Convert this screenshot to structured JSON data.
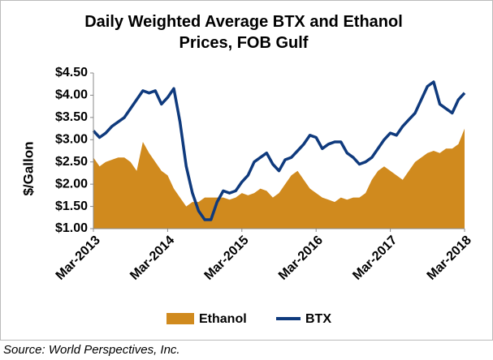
{
  "chart_data": {
    "type": "area-line",
    "title": "Daily Weighted Average BTX and Ethanol Prices, FOB Gulf",
    "y_label": "$/Gallon",
    "source": "Source: World Perspectives, Inc.",
    "x": [
      "2013-03",
      "2013-04",
      "2013-05",
      "2013-06",
      "2013-07",
      "2013-08",
      "2013-09",
      "2013-10",
      "2013-11",
      "2013-12",
      "2014-01",
      "2014-02",
      "2014-03",
      "2014-04",
      "2014-05",
      "2014-06",
      "2014-07",
      "2014-08",
      "2014-09",
      "2014-10",
      "2014-11",
      "2014-12",
      "2015-01",
      "2015-02",
      "2015-03",
      "2015-04",
      "2015-05",
      "2015-06",
      "2015-07",
      "2015-08",
      "2015-09",
      "2015-10",
      "2015-11",
      "2015-12",
      "2016-01",
      "2016-02",
      "2016-03",
      "2016-04",
      "2016-05",
      "2016-06",
      "2016-07",
      "2016-08",
      "2016-09",
      "2016-10",
      "2016-11",
      "2016-12",
      "2017-01",
      "2017-02",
      "2017-03",
      "2017-04",
      "2017-05",
      "2017-06",
      "2017-07",
      "2017-08",
      "2017-09",
      "2017-10",
      "2017-11",
      "2017-12",
      "2018-01",
      "2018-02",
      "2018-03"
    ],
    "xticks": [
      {
        "value": "2013-03",
        "label": "Mar-2013"
      },
      {
        "value": "2014-03",
        "label": "Mar-2014"
      },
      {
        "value": "2015-03",
        "label": "Mar-2015"
      },
      {
        "value": "2016-03",
        "label": "Mar-2016"
      },
      {
        "value": "2017-03",
        "label": "Mar-2017"
      },
      {
        "value": "2018-03",
        "label": "Mar-2018"
      }
    ],
    "ylim": [
      1,
      4.5
    ],
    "yticks": [
      {
        "value": 1,
        "label": "$1.00"
      },
      {
        "value": 1.5,
        "label": "$1.50"
      },
      {
        "value": 2,
        "label": "$2.00"
      },
      {
        "value": 2.5,
        "label": "$2.50"
      },
      {
        "value": 3,
        "label": "$3.00"
      },
      {
        "value": 3.5,
        "label": "$3.50"
      },
      {
        "value": 4,
        "label": "$4.00"
      },
      {
        "value": 4.5,
        "label": "$4.50"
      }
    ],
    "series": [
      {
        "name": "Ethanol",
        "kind": "area",
        "color": "#d08a1e",
        "values": [
          2.6,
          2.4,
          2.5,
          2.55,
          2.6,
          2.6,
          2.5,
          2.3,
          2.95,
          2.7,
          2.5,
          2.3,
          2.2,
          1.9,
          1.7,
          1.5,
          1.6,
          1.6,
          1.7,
          1.7,
          1.7,
          1.7,
          1.65,
          1.7,
          1.8,
          1.75,
          1.8,
          1.9,
          1.85,
          1.7,
          1.8,
          2.0,
          2.2,
          2.3,
          2.1,
          1.9,
          1.8,
          1.7,
          1.65,
          1.6,
          1.7,
          1.65,
          1.7,
          1.7,
          1.8,
          2.1,
          2.3,
          2.4,
          2.3,
          2.2,
          2.1,
          2.3,
          2.5,
          2.6,
          2.7,
          2.75,
          2.7,
          2.8,
          2.8,
          2.9,
          3.25
        ]
      },
      {
        "name": "BTX",
        "kind": "line",
        "color": "#0f3a7d",
        "values": [
          3.2,
          3.05,
          3.15,
          3.3,
          3.4,
          3.5,
          3.7,
          3.9,
          4.1,
          4.05,
          4.1,
          3.8,
          3.95,
          4.15,
          3.4,
          2.4,
          1.8,
          1.4,
          1.2,
          1.2,
          1.6,
          1.85,
          1.8,
          1.85,
          2.05,
          2.2,
          2.5,
          2.6,
          2.7,
          2.45,
          2.3,
          2.55,
          2.6,
          2.75,
          2.9,
          3.1,
          3.05,
          2.8,
          2.9,
          2.95,
          2.95,
          2.7,
          2.6,
          2.45,
          2.5,
          2.6,
          2.8,
          3.0,
          3.15,
          3.1,
          3.3,
          3.45,
          3.6,
          3.9,
          4.2,
          4.3,
          3.8,
          3.7,
          3.6,
          3.9,
          4.05
        ]
      }
    ]
  }
}
